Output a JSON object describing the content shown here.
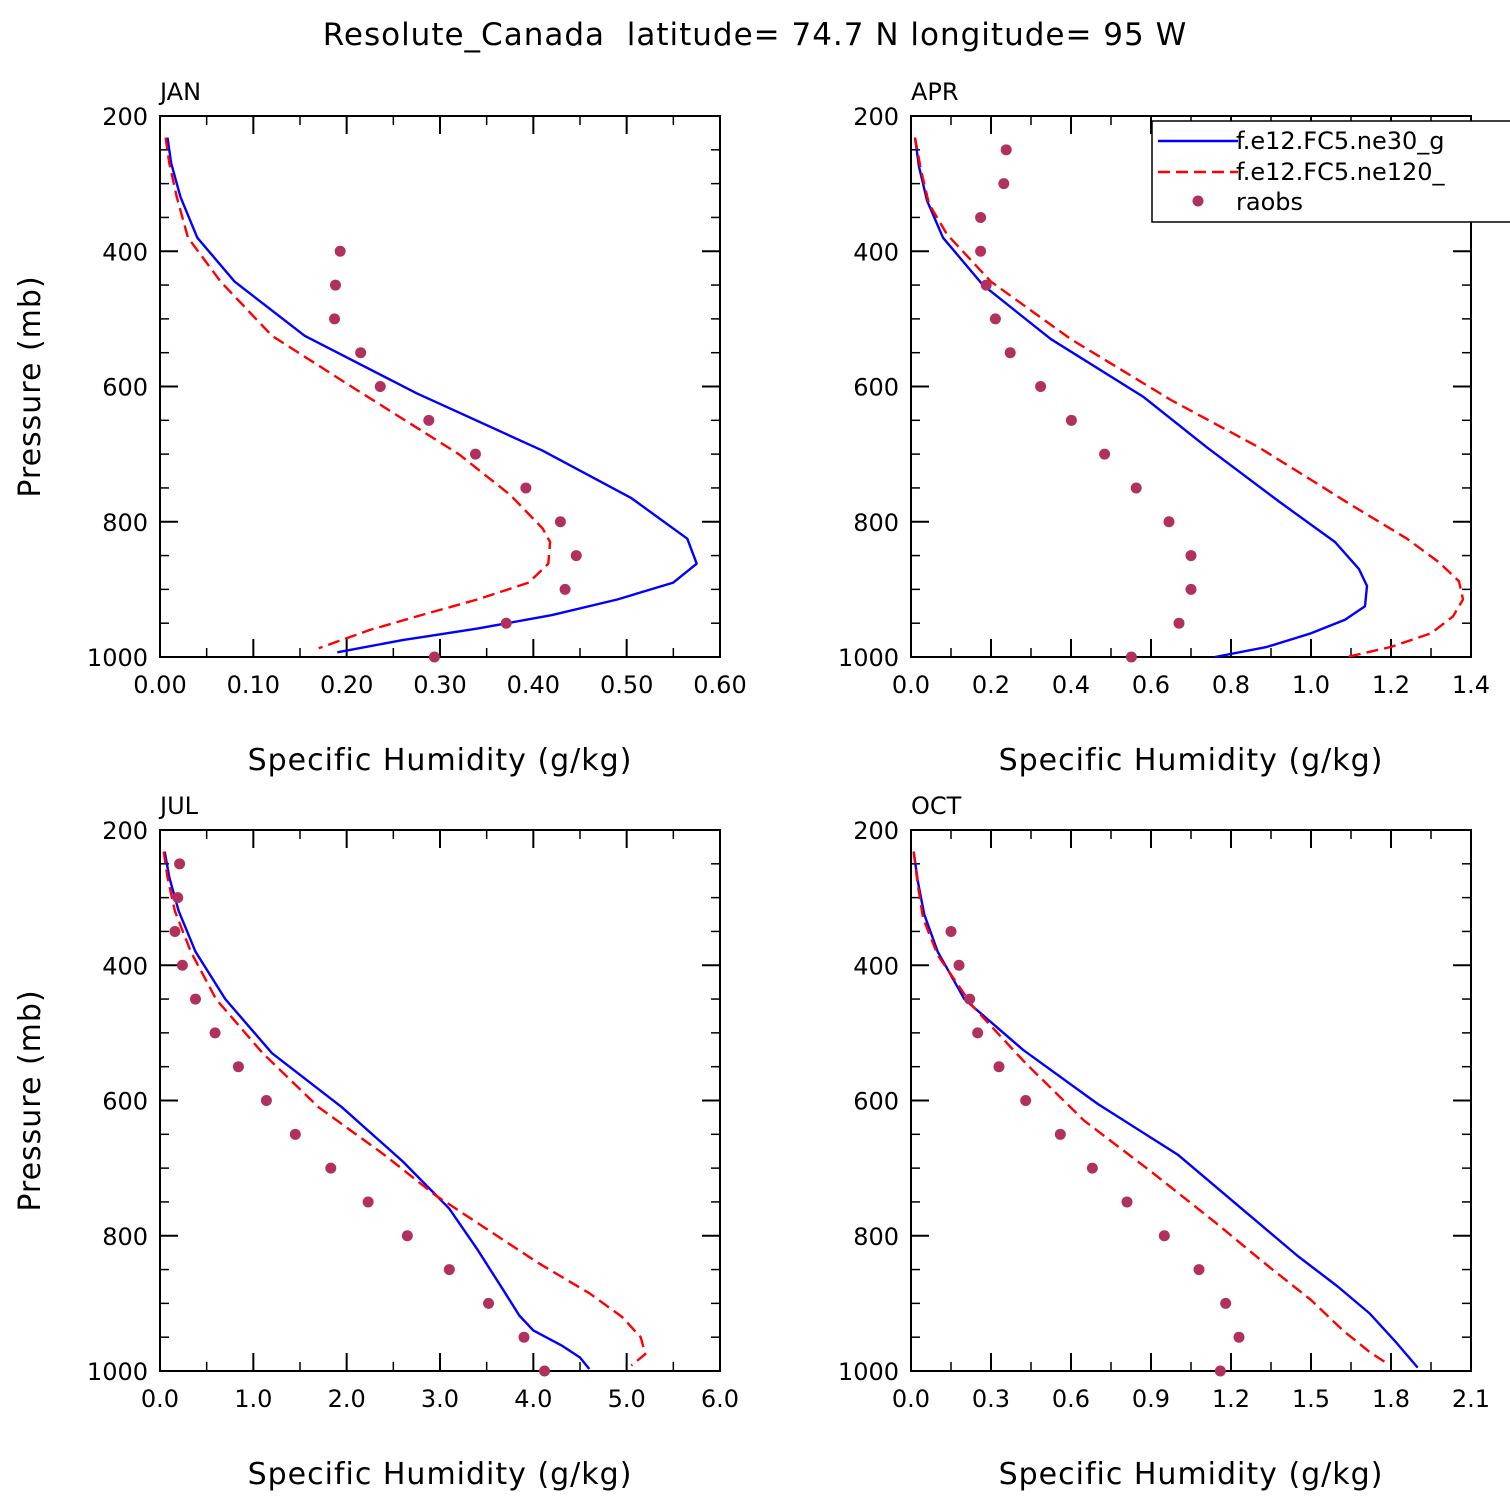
{
  "figure": {
    "title": "Resolute_Canada  latitude= 74.7 N longitude= 95 W"
  },
  "legend": {
    "entries": [
      {
        "label": "f.e12.FC5.ne30_g",
        "color": "#0000ff",
        "style": "solid"
      },
      {
        "label": "f.e12.FC5.ne120_",
        "color": "#ff0000",
        "style": "dashed"
      },
      {
        "label": "raobs",
        "color": "#b03060",
        "style": "dots"
      }
    ],
    "placement": "top-right of APR panel"
  },
  "chart_data": [
    {
      "type": "line",
      "panel_label": "JAN",
      "xlabel": "Specific Humidity (g/kg)",
      "ylabel": "Pressure (mb)",
      "xlim": [
        0,
        0.6
      ],
      "ylim": [
        200,
        1000
      ],
      "y_inverted": true,
      "xticks": [
        0,
        0.1,
        0.2,
        0.3,
        0.4,
        0.5,
        0.6
      ],
      "xtick_labels": [
        "0.00",
        "0.10",
        "0.20",
        "0.30",
        "0.40",
        "0.50",
        "0.60"
      ],
      "yticks": [
        200,
        400,
        600,
        800,
        1000
      ],
      "ytick_labels": [
        "200",
        "400",
        "600",
        "800",
        "1000"
      ],
      "x_minor": 0.05,
      "y_minor": 50,
      "series": [
        {
          "name": "f.e12.FC5.ne30_g",
          "style": "solid",
          "color": "#0000ff",
          "points": [
            [
              0.008,
              232
            ],
            [
              0.012,
              270
            ],
            [
              0.022,
              320
            ],
            [
              0.04,
              380
            ],
            [
              0.08,
              445
            ],
            [
              0.155,
              525
            ],
            [
              0.275,
              610
            ],
            [
              0.41,
              695
            ],
            [
              0.505,
              765
            ],
            [
              0.565,
              825
            ],
            [
              0.575,
              862
            ],
            [
              0.55,
              890
            ],
            [
              0.49,
              915
            ],
            [
              0.42,
              938
            ],
            [
              0.34,
              958
            ],
            [
              0.26,
              975
            ],
            [
              0.19,
              993
            ]
          ]
        },
        {
          "name": "f.e12.FC5.ne120_",
          "style": "dashed",
          "color": "#ff0000",
          "points": [
            [
              0.006,
              232
            ],
            [
              0.01,
              270
            ],
            [
              0.018,
              320
            ],
            [
              0.03,
              380
            ],
            [
              0.065,
              445
            ],
            [
              0.12,
              525
            ],
            [
              0.205,
              600
            ],
            [
              0.32,
              700
            ],
            [
              0.375,
              760
            ],
            [
              0.41,
              810
            ],
            [
              0.418,
              830
            ],
            [
              0.416,
              862
            ],
            [
              0.395,
              890
            ],
            [
              0.34,
              915
            ],
            [
              0.28,
              938
            ],
            [
              0.225,
              960
            ],
            [
              0.17,
              987
            ]
          ]
        },
        {
          "name": "raobs",
          "style": "dots",
          "color": "#b03060",
          "points": [
            [
              0.193,
              400
            ],
            [
              0.188,
              450
            ],
            [
              0.187,
              500
            ],
            [
              0.215,
              550
            ],
            [
              0.236,
              600
            ],
            [
              0.288,
              650
            ],
            [
              0.338,
              700
            ],
            [
              0.392,
              750
            ],
            [
              0.429,
              800
            ],
            [
              0.446,
              850
            ],
            [
              0.434,
              900
            ],
            [
              0.371,
              950
            ],
            [
              0.294,
              1000
            ]
          ]
        }
      ]
    },
    {
      "type": "line",
      "panel_label": "APR",
      "xlabel": "Specific Humidity (g/kg)",
      "ylabel": "",
      "xlim": [
        0,
        1.4
      ],
      "ylim": [
        200,
        1000
      ],
      "y_inverted": true,
      "xticks": [
        0,
        0.2,
        0.4,
        0.6,
        0.8,
        1.0,
        1.2,
        1.4
      ],
      "xtick_labels": [
        "0.0",
        "0.2",
        "0.4",
        "0.6",
        "0.8",
        "1.0",
        "1.2",
        "1.4"
      ],
      "yticks": [
        200,
        400,
        600,
        800,
        1000
      ],
      "ytick_labels": [
        "200",
        "400",
        "600",
        "800",
        "1000"
      ],
      "x_minor": 0.1,
      "y_minor": 50,
      "series": [
        {
          "name": "f.e12.FC5.ne30_g",
          "style": "solid",
          "color": "#0000ff",
          "points": [
            [
              0.01,
              232
            ],
            [
              0.02,
              275
            ],
            [
              0.04,
              325
            ],
            [
              0.08,
              380
            ],
            [
              0.18,
              450
            ],
            [
              0.35,
              530
            ],
            [
              0.58,
              615
            ],
            [
              0.74,
              690
            ],
            [
              0.92,
              770
            ],
            [
              1.06,
              830
            ],
            [
              1.12,
              870
            ],
            [
              1.14,
              895
            ],
            [
              1.135,
              925
            ],
            [
              1.085,
              945
            ],
            [
              1.0,
              965
            ],
            [
              0.89,
              985
            ],
            [
              0.76,
              1000
            ]
          ]
        },
        {
          "name": "f.e12.FC5.ne120_",
          "style": "dashed",
          "color": "#ff0000",
          "points": [
            [
              0.01,
              232
            ],
            [
              0.025,
              280
            ],
            [
              0.045,
              330
            ],
            [
              0.09,
              375
            ],
            [
              0.2,
              445
            ],
            [
              0.4,
              530
            ],
            [
              0.65,
              620
            ],
            [
              0.87,
              690
            ],
            [
              1.1,
              775
            ],
            [
              1.24,
              825
            ],
            [
              1.32,
              860
            ],
            [
              1.37,
              888
            ],
            [
              1.38,
              915
            ],
            [
              1.355,
              940
            ],
            [
              1.3,
              965
            ],
            [
              1.2,
              985
            ],
            [
              1.09,
              1000
            ]
          ]
        },
        {
          "name": "raobs",
          "style": "dots",
          "color": "#b03060",
          "points": [
            [
              0.238,
              250
            ],
            [
              0.232,
              300
            ],
            [
              0.174,
              350
            ],
            [
              0.174,
              400
            ],
            [
              0.188,
              450
            ],
            [
              0.211,
              500
            ],
            [
              0.248,
              550
            ],
            [
              0.324,
              600
            ],
            [
              0.401,
              650
            ],
            [
              0.484,
              700
            ],
            [
              0.563,
              750
            ],
            [
              0.645,
              800
            ],
            [
              0.7,
              850
            ],
            [
              0.7,
              900
            ],
            [
              0.67,
              950
            ],
            [
              0.551,
              1000
            ]
          ]
        }
      ]
    },
    {
      "type": "line",
      "panel_label": "JUL",
      "xlabel": "Specific Humidity (g/kg)",
      "ylabel": "Pressure (mb)",
      "xlim": [
        0,
        6.0
      ],
      "ylim": [
        200,
        1000
      ],
      "y_inverted": true,
      "xticks": [
        0,
        1,
        2,
        3,
        4,
        5,
        6
      ],
      "xtick_labels": [
        "0.0",
        "1.0",
        "2.0",
        "3.0",
        "4.0",
        "5.0",
        "6.0"
      ],
      "yticks": [
        200,
        400,
        600,
        800,
        1000
      ],
      "ytick_labels": [
        "200",
        "400",
        "600",
        "800",
        "1000"
      ],
      "x_minor": 0.5,
      "y_minor": 50,
      "series": [
        {
          "name": "f.e12.FC5.ne30_g",
          "style": "solid",
          "color": "#0000ff",
          "points": [
            [
              0.05,
              232
            ],
            [
              0.1,
              270
            ],
            [
              0.2,
              320
            ],
            [
              0.38,
              380
            ],
            [
              0.7,
              450
            ],
            [
              1.2,
              530
            ],
            [
              1.95,
              610
            ],
            [
              2.6,
              690
            ],
            [
              3.1,
              760
            ],
            [
              3.4,
              820
            ],
            [
              3.7,
              885
            ],
            [
              3.85,
              918
            ],
            [
              4.0,
              940
            ],
            [
              4.3,
              962
            ],
            [
              4.5,
              980
            ],
            [
              4.6,
              997
            ]
          ]
        },
        {
          "name": "f.e12.FC5.ne120_",
          "style": "dashed",
          "color": "#ff0000",
          "points": [
            [
              0.04,
              232
            ],
            [
              0.08,
              270
            ],
            [
              0.16,
              320
            ],
            [
              0.33,
              380
            ],
            [
              0.6,
              450
            ],
            [
              1.1,
              530
            ],
            [
              1.7,
              610
            ],
            [
              2.4,
              680
            ],
            [
              2.95,
              740
            ],
            [
              3.5,
              790
            ],
            [
              4.05,
              840
            ],
            [
              4.6,
              885
            ],
            [
              4.95,
              920
            ],
            [
              5.15,
              950
            ],
            [
              5.2,
              975
            ],
            [
              5.05,
              992
            ]
          ]
        },
        {
          "name": "raobs",
          "style": "dots",
          "color": "#b03060",
          "points": [
            [
              0.21,
              250
            ],
            [
              0.19,
              300
            ],
            [
              0.16,
              350
            ],
            [
              0.24,
              400
            ],
            [
              0.38,
              450
            ],
            [
              0.59,
              500
            ],
            [
              0.84,
              550
            ],
            [
              1.14,
              600
            ],
            [
              1.45,
              650
            ],
            [
              1.83,
              700
            ],
            [
              2.23,
              750
            ],
            [
              2.65,
              800
            ],
            [
              3.1,
              850
            ],
            [
              3.52,
              900
            ],
            [
              3.9,
              950
            ],
            [
              4.12,
              1000
            ]
          ]
        }
      ]
    },
    {
      "type": "line",
      "panel_label": "OCT",
      "xlabel": "Specific Humidity (g/kg)",
      "ylabel": "",
      "xlim": [
        0,
        2.1
      ],
      "ylim": [
        200,
        1000
      ],
      "y_inverted": true,
      "xticks": [
        0,
        0.3,
        0.6,
        0.9,
        1.2,
        1.5,
        1.8,
        2.1
      ],
      "xtick_labels": [
        "0.0",
        "0.3",
        "0.6",
        "0.9",
        "1.2",
        "1.5",
        "1.8",
        "2.1"
      ],
      "yticks": [
        200,
        400,
        600,
        800,
        1000
      ],
      "ytick_labels": [
        "200",
        "400",
        "600",
        "800",
        "1000"
      ],
      "x_minor": 0.15,
      "y_minor": 50,
      "series": [
        {
          "name": "f.e12.FC5.ne30_g",
          "style": "solid",
          "color": "#0000ff",
          "points": [
            [
              0.01,
              232
            ],
            [
              0.025,
              275
            ],
            [
              0.05,
              325
            ],
            [
              0.1,
              380
            ],
            [
              0.2,
              450
            ],
            [
              0.42,
              525
            ],
            [
              0.7,
              605
            ],
            [
              1.0,
              680
            ],
            [
              1.24,
              760
            ],
            [
              1.45,
              830
            ],
            [
              1.6,
              875
            ],
            [
              1.72,
              915
            ],
            [
              1.82,
              958
            ],
            [
              1.9,
              995
            ]
          ]
        },
        {
          "name": "f.e12.FC5.ne120_",
          "style": "dashed",
          "color": "#ff0000",
          "points": [
            [
              0.01,
              232
            ],
            [
              0.025,
              280
            ],
            [
              0.045,
              330
            ],
            [
              0.1,
              385
            ],
            [
              0.23,
              460
            ],
            [
              0.43,
              545
            ],
            [
              0.65,
              630
            ],
            [
              0.9,
              705
            ],
            [
              1.14,
              780
            ],
            [
              1.34,
              845
            ],
            [
              1.5,
              895
            ],
            [
              1.62,
              940
            ],
            [
              1.72,
              972
            ],
            [
              1.79,
              990
            ]
          ]
        },
        {
          "name": "raobs",
          "style": "dots",
          "color": "#b03060",
          "points": [
            [
              0.15,
              350
            ],
            [
              0.18,
              400
            ],
            [
              0.22,
              450
            ],
            [
              0.25,
              500
            ],
            [
              0.33,
              550
            ],
            [
              0.43,
              600
            ],
            [
              0.56,
              650
            ],
            [
              0.68,
              700
            ],
            [
              0.81,
              750
            ],
            [
              0.95,
              800
            ],
            [
              1.08,
              850
            ],
            [
              1.18,
              900
            ],
            [
              1.23,
              950
            ],
            [
              1.16,
              1000
            ]
          ]
        }
      ]
    }
  ]
}
